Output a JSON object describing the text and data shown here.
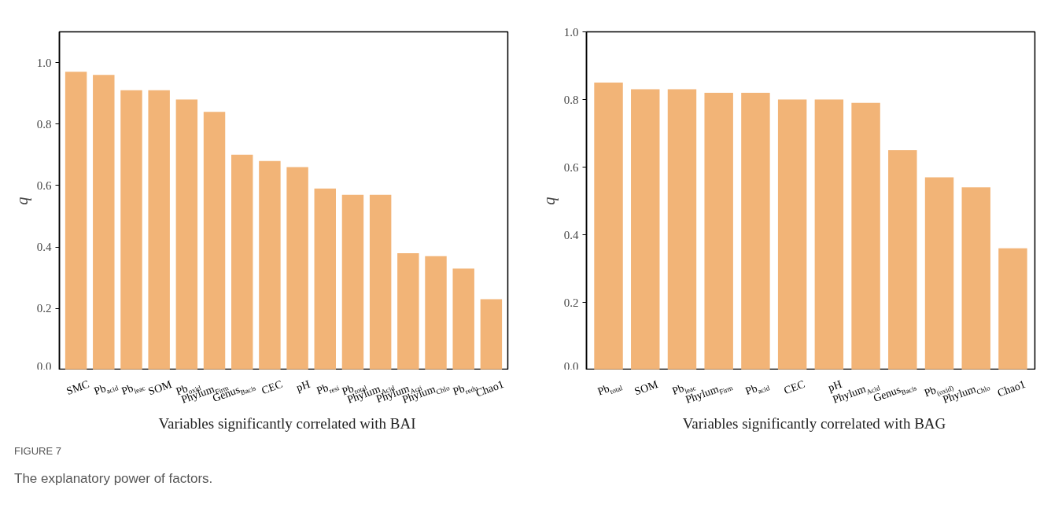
{
  "chart_data": [
    {
      "type": "bar",
      "xlabel": "Variables significantly correlated with BAI",
      "ylabel": "q",
      "categories": [
        "SMC",
        "Pb$_{acid}$",
        "Pb$_{leac}$",
        "SOM",
        "Pb$_{oxid}$",
        "Phylum$_{Firm}$",
        "Genus$_{Bacis}$",
        "CEC",
        "pH",
        "Pb$_{resi}$",
        "Pb$_{total}$",
        "Phylum$_{Acid}$",
        "Phylum$_{Acti}$",
        "Phylum$_{Chlo}$",
        "Pb$_{redu}$",
        "Chao1"
      ],
      "values": [
        0.97,
        0.96,
        0.91,
        0.91,
        0.88,
        0.84,
        0.7,
        0.68,
        0.66,
        0.59,
        0.57,
        0.57,
        0.38,
        0.37,
        0.33,
        0.23
      ],
      "color": "#f2b477",
      "ylim": [
        0,
        1.1
      ],
      "yticks": [
        {
          "value": 0,
          "label": "0.0"
        },
        {
          "value": 0.2,
          "label": "0.2"
        },
        {
          "value": 0.4,
          "label": "0.4"
        },
        {
          "value": 0.6,
          "label": "0.6"
        },
        {
          "value": 0.8,
          "label": "0.8"
        },
        {
          "value": 1.0,
          "label": "1.0"
        }
      ],
      "grid": false,
      "legend": false,
      "annotations": [
        "FIGURE 7",
        "The explanatory power of factors."
      ]
    },
    {
      "type": "bar",
      "xlabel": "Variables significantly correlated with BAG",
      "ylabel": "q",
      "categories": [
        "Pb$_{total}$",
        "SOM",
        "Pb$_{leac}$",
        "Phylum$_{Firm}$",
        "Pb$_{acid}$",
        "CEC",
        "pH",
        "Phylum$_{Acid}$",
        "Genus$_{Bacis}$",
        "Pb$_{(oxid)}$",
        "Phylum$_{Chlo}$",
        "Chao1"
      ],
      "values": [
        0.85,
        0.83,
        0.83,
        0.82,
        0.82,
        0.8,
        0.8,
        0.79,
        0.65,
        0.57,
        0.54,
        0.36
      ],
      "color": "#f2b477",
      "ylim": [
        0,
        1.0
      ],
      "yticks": [
        {
          "value": 0,
          "label": "0.0"
        },
        {
          "value": 0.2,
          "label": "0.2"
        },
        {
          "value": 0.4,
          "label": "0.4"
        },
        {
          "value": 0.6,
          "label": "0.6"
        },
        {
          "value": 0.8,
          "label": "0.8"
        },
        {
          "value": 1.0,
          "label": "1.0"
        }
      ],
      "grid": false,
      "legend": false
    }
  ]
}
